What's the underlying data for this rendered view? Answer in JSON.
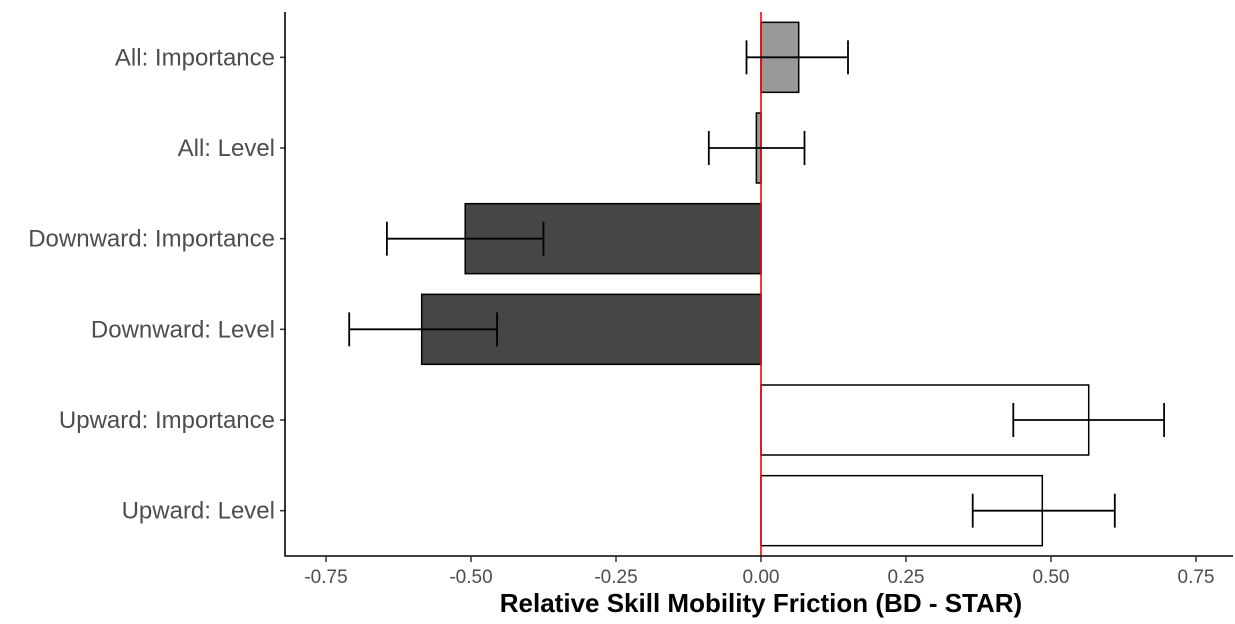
{
  "chart_data": {
    "type": "bar",
    "orientation": "horizontal",
    "xlabel": "Relative Skill Mobility Friction (BD - STAR)",
    "ylabel": "",
    "xlim": [
      -0.82,
      0.82
    ],
    "xticks": [
      -0.75,
      -0.5,
      -0.25,
      0.0,
      0.25,
      0.5,
      0.75
    ],
    "xtick_labels": [
      "-0.75",
      "-0.50",
      "-0.25",
      "0.00",
      "0.25",
      "0.50",
      "0.75"
    ],
    "reference_line": {
      "x": 0.0,
      "color": "#ff0000"
    },
    "grid": false,
    "categories": [
      "All: Importance",
      "All: Level",
      "Downward: Importance",
      "Downward: Level",
      "Upward: Importance",
      "Upward: Level"
    ],
    "values": [
      0.065,
      -0.008,
      -0.51,
      -0.585,
      0.565,
      0.485
    ],
    "error_low": [
      -0.025,
      -0.09,
      -0.645,
      -0.71,
      0.435,
      0.365
    ],
    "error_high": [
      0.15,
      0.075,
      -0.375,
      -0.455,
      0.695,
      0.61
    ],
    "fill_colors": [
      "#999999",
      "#999999",
      "#464646",
      "#464646",
      "#ffffff",
      "#ffffff"
    ]
  }
}
